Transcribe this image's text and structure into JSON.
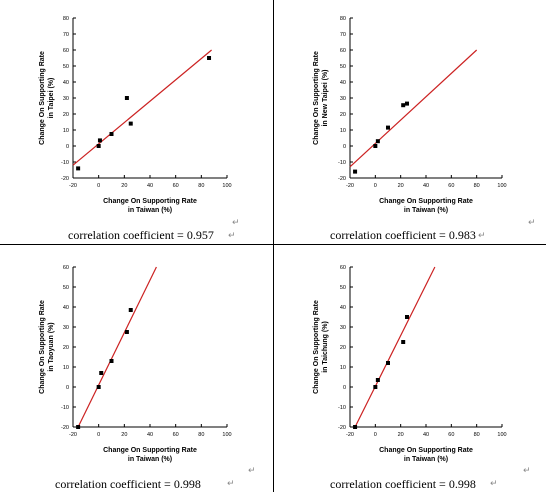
{
  "charts": [
    {
      "chart_data": {
        "type": "scatter",
        "xlabel": "Change On Supporting Rate\nin Taiwan (%)",
        "ylabel": "Change On Supporting Rate\nin Taipei (%)",
        "xlim": [
          -20,
          100
        ],
        "ylim": [
          -20,
          80
        ],
        "xticks": [
          -20,
          0,
          20,
          40,
          60,
          80,
          100
        ],
        "yticks": [
          -20,
          -10,
          0,
          10,
          20,
          30,
          40,
          50,
          60,
          70,
          80
        ],
        "points": [
          [
            -16,
            -14
          ],
          [
            0,
            0
          ],
          [
            1,
            3.5
          ],
          [
            10,
            7.5
          ],
          [
            22,
            30
          ],
          [
            25,
            14
          ],
          [
            86,
            55
          ]
        ],
        "fit": [
          [
            -20,
            -12
          ],
          [
            88,
            60
          ]
        ],
        "line_color": "#cc2222"
      },
      "caption": "correlation coefficient = 0.957"
    },
    {
      "chart_data": {
        "type": "scatter",
        "xlabel": "Change On Supporting Rate\nin Taiwan (%)",
        "ylabel": "Change On Supporting Rate\nin New Taipei (%)",
        "xlim": [
          -20,
          100
        ],
        "ylim": [
          -20,
          80
        ],
        "xticks": [
          -20,
          0,
          20,
          40,
          60,
          80,
          100
        ],
        "yticks": [
          -20,
          -10,
          0,
          10,
          20,
          30,
          40,
          50,
          60,
          70,
          80
        ],
        "points": [
          [
            -16,
            -16
          ],
          [
            0,
            0
          ],
          [
            2,
            3
          ],
          [
            10,
            11.5
          ],
          [
            22,
            25.5
          ],
          [
            25,
            26.5
          ]
        ],
        "fit": [
          [
            -20,
            -13
          ],
          [
            80,
            60
          ]
        ],
        "line_color": "#cc2222"
      },
      "caption": "correlation coefficient = 0.983"
    },
    {
      "chart_data": {
        "type": "scatter",
        "xlabel": "Change On Supporting Rate\nin Taiwan (%)",
        "ylabel": "Change On Supporting Rate\nin Taoyuan (%)",
        "xlim": [
          -20,
          100
        ],
        "ylim": [
          -20,
          60
        ],
        "xticks": [
          -20,
          0,
          20,
          40,
          60,
          80,
          100
        ],
        "yticks": [
          -20,
          -10,
          0,
          10,
          20,
          30,
          40,
          50,
          60
        ],
        "points": [
          [
            -16,
            -20
          ],
          [
            0,
            0
          ],
          [
            2,
            7
          ],
          [
            10,
            13
          ],
          [
            22,
            27.5
          ],
          [
            25,
            38.5
          ]
        ],
        "fit": [
          [
            -16,
            -20
          ],
          [
            45,
            60
          ]
        ],
        "line_color": "#cc2222"
      },
      "caption": "correlation coefficient = 0.998"
    },
    {
      "chart_data": {
        "type": "scatter",
        "xlabel": "Change On Supporting Rate\nin Taiwan (%)",
        "ylabel": "Change On Supporting Rate\nin Taichung (%)",
        "xlim": [
          -20,
          100
        ],
        "ylim": [
          -20,
          60
        ],
        "xticks": [
          -20,
          0,
          20,
          40,
          60,
          80,
          100
        ],
        "yticks": [
          -20,
          -10,
          0,
          10,
          20,
          30,
          40,
          50,
          60
        ],
        "points": [
          [
            -16,
            -20
          ],
          [
            0,
            0
          ],
          [
            2,
            3.5
          ],
          [
            10,
            12
          ],
          [
            22,
            22.5
          ],
          [
            25,
            35
          ]
        ],
        "fit": [
          [
            -16,
            -20
          ],
          [
            47,
            60
          ]
        ],
        "line_color": "#cc2222"
      },
      "caption": "correlation coefficient = 0.998"
    }
  ],
  "return_mark": "↵"
}
